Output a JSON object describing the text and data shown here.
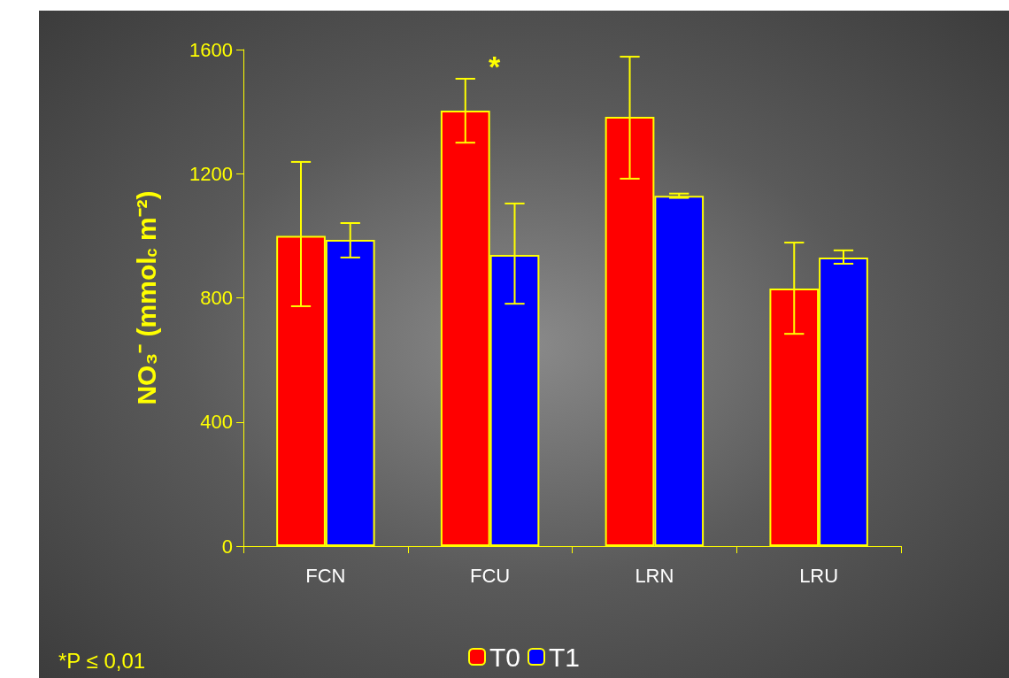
{
  "chart_data": {
    "type": "bar",
    "ylabel": "NO₃⁻ (mmol$_{c}$ m⁻²)",
    "categories": [
      "FCN",
      "FCU",
      "LRN",
      "LRU"
    ],
    "series": [
      {
        "name": "T0",
        "color": "#ff0000",
        "values": [
          1000,
          1403,
          1383,
          830
        ],
        "errors": [
          [
            773,
            1238
          ],
          [
            1300,
            1506
          ],
          [
            1184,
            1577
          ],
          [
            684,
            978
          ]
        ]
      },
      {
        "name": "T1",
        "color": "#0000ff",
        "values": [
          987,
          938,
          1129,
          930
        ],
        "errors": [
          [
            930,
            1041
          ],
          [
            781,
            1104
          ],
          [
            1122,
            1136
          ],
          [
            910,
            953
          ]
        ]
      }
    ],
    "ylim": [
      0,
      1600
    ],
    "yticks": [
      0,
      400,
      800,
      1200,
      1600
    ],
    "grid": false,
    "legend": "bottom",
    "annotations": [
      "*",
      "*P ≤ 0,01"
    ]
  }
}
